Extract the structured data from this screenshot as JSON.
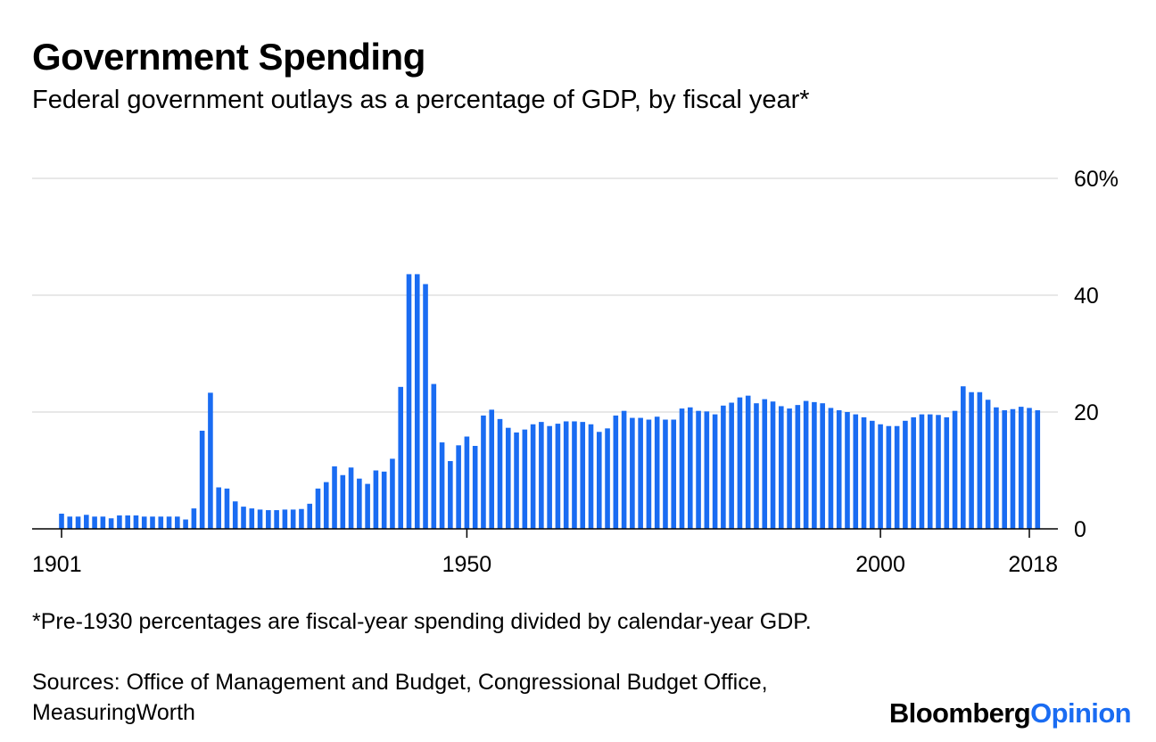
{
  "header": {
    "title": "Government Spending",
    "subtitle": "Federal government outlays as a percentage of GDP, by fiscal year*"
  },
  "footer": {
    "footnote": "*Pre-1930 percentages are fiscal-year spending divided by calendar-year GDP.",
    "sources": "Sources: Office of Management and Budget, Congressional Budget Office, MeasuringWorth",
    "brand_part1": "Bloomberg",
    "brand_part2": "Opinion"
  },
  "colors": {
    "bar": "#1a6cf2",
    "grid": "#e8e8e8",
    "axis": "#000000",
    "brand_accent": "#1a6cf2"
  },
  "chart_data": {
    "type": "bar",
    "title": "Government Spending",
    "subtitle": "Federal government outlays as a percentage of GDP, by fiscal year*",
    "xlabel": "",
    "ylabel": "",
    "ylim": [
      0,
      60
    ],
    "yticks": [
      0,
      20,
      40,
      60
    ],
    "ytick_labels": [
      "0",
      "20",
      "40",
      "60%"
    ],
    "xtick_labels": [
      "1901",
      "1950",
      "2000",
      "2018"
    ],
    "xticks": [
      1901,
      1950,
      2000,
      2018
    ],
    "x_start": 1901,
    "x_end": 2018,
    "grid": true,
    "y_axis_side": "right",
    "values": [
      2.6,
      2.1,
      2.1,
      2.4,
      2.1,
      2.1,
      1.8,
      2.3,
      2.3,
      2.3,
      2.1,
      2.1,
      2.1,
      2.1,
      2.1,
      1.6,
      3.5,
      16.8,
      23.3,
      7.1,
      6.9,
      4.7,
      3.8,
      3.5,
      3.3,
      3.2,
      3.2,
      3.3,
      3.3,
      3.4,
      4.3,
      6.9,
      8.0,
      10.7,
      9.2,
      10.5,
      8.6,
      7.7,
      10.0,
      9.8,
      12.0,
      24.3,
      43.6,
      43.6,
      41.9,
      24.8,
      14.8,
      11.6,
      14.3,
      15.8,
      14.2,
      19.4,
      20.4,
      18.8,
      17.3,
      16.5,
      17.0,
      17.9,
      18.3,
      17.6,
      18.0,
      18.4,
      18.4,
      18.3,
      17.9,
      16.6,
      17.2,
      19.4,
      20.2,
      19.0,
      19.0,
      18.7,
      19.2,
      18.7,
      18.7,
      20.6,
      20.8,
      20.2,
      20.1,
      19.6,
      21.1,
      21.6,
      22.5,
      22.8,
      21.5,
      22.2,
      21.8,
      21.0,
      20.6,
      21.2,
      21.9,
      21.7,
      21.5,
      20.7,
      20.3,
      20.0,
      19.6,
      19.1,
      18.5,
      17.9,
      17.6,
      17.6,
      18.5,
      19.1,
      19.6,
      19.6,
      19.5,
      19.1,
      20.2,
      24.4,
      23.4,
      23.4,
      22.1,
      20.8,
      20.3,
      20.5,
      20.9,
      20.7,
      20.3
    ]
  }
}
